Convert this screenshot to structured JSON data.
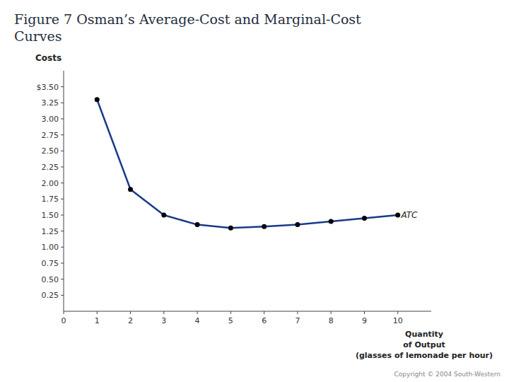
{
  "chart_data": {
    "type": "line",
    "title": [
      "Figure 7  Osman’s Average-Cost and Marginal-Cost",
      "Curves"
    ],
    "ylabel": "Costs",
    "xlabel": [
      "Quantity",
      "of Output",
      "(glasses of lemonade per hour)"
    ],
    "x": [
      1,
      2,
      3,
      4,
      5,
      6,
      7,
      8,
      9,
      10
    ],
    "values": [
      3.3,
      1.9,
      1.5,
      1.35,
      1.3,
      1.32,
      1.35,
      1.4,
      1.45,
      1.5
    ],
    "color": "#1a3a8a",
    "marker": "circle",
    "xlim": [
      0,
      11.0
    ],
    "ylim": [
      0,
      3.75
    ],
    "xticks": [
      0,
      1,
      2,
      3,
      4,
      5,
      6,
      7,
      8,
      9,
      10
    ],
    "yticks": [
      {
        "value": 3.5,
        "label": "$3.50"
      },
      3.25,
      {
        "value": 3.0,
        "label": "3.00"
      },
      2.75,
      {
        "value": 2.5,
        "label": "2.50"
      },
      2.25,
      {
        "value": 2.0,
        "label": "2.00"
      },
      1.75,
      {
        "value": 1.5,
        "label": "1.50"
      },
      1.25,
      {
        "value": 1.0,
        "label": "1.00"
      },
      0.75,
      {
        "value": 0.5,
        "label": "0.50"
      },
      0.25
    ],
    "grid": false,
    "annotations": [
      {
        "text": "ATC",
        "x": 10.1,
        "y": 1.5
      },
      {
        "text": "Copyright © 2004  South-Western"
      }
    ]
  }
}
